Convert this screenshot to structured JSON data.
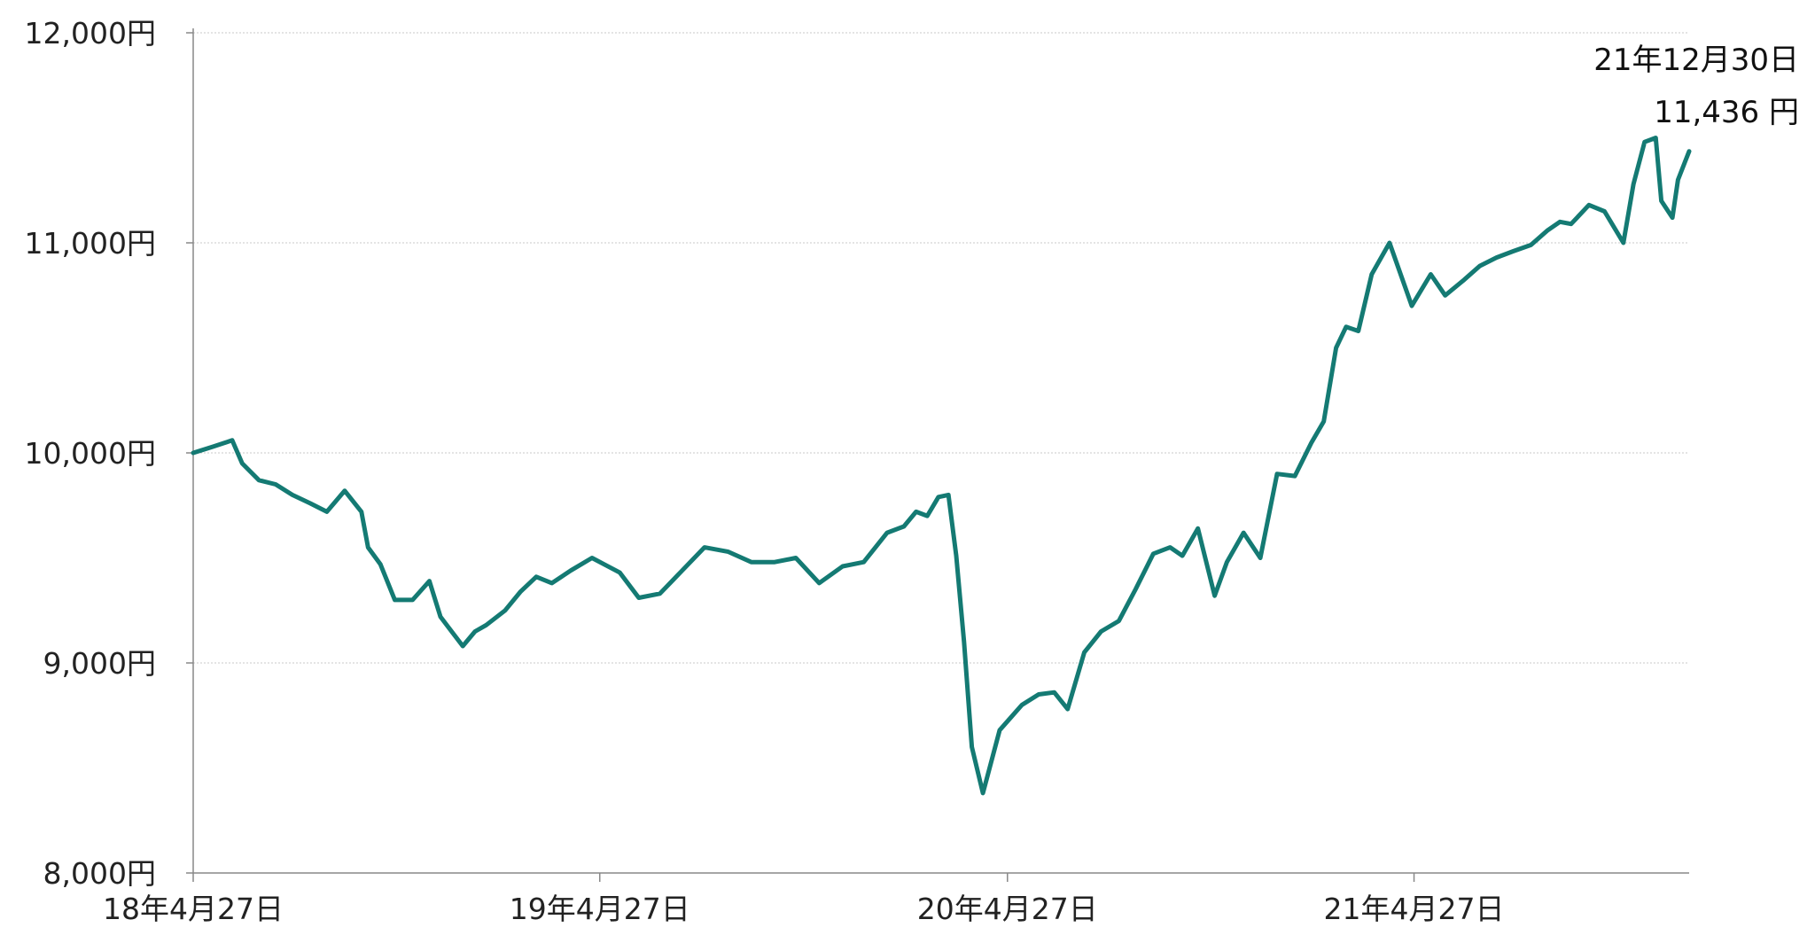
{
  "chart_data": {
    "type": "line",
    "title": "",
    "xlabel": "",
    "ylabel": "",
    "ylim": [
      8000,
      12000
    ],
    "y_ticks": [
      8000,
      9000,
      10000,
      11000,
      12000
    ],
    "y_tick_labels": [
      "8,000円",
      "9,000円",
      "10,000円",
      "11,000円",
      "12,000円"
    ],
    "x_tick_labels": [
      "18年4月27日",
      "19年4月27日",
      "20年4月27日",
      "21年4月27日"
    ],
    "x_ticks": [
      "2018-04-27",
      "2019-04-27",
      "2020-04-27",
      "2021-04-27"
    ],
    "x_range": [
      "2018-04-27",
      "2021-12-30"
    ],
    "grid": true,
    "legend": "none",
    "line_color": "#147a73",
    "annotation": {
      "date_label": "21年12月30日",
      "value_label": "11,436 円"
    },
    "series": [
      {
        "x": [
          "2018-04-27",
          "2018-05-15",
          "2018-06-01",
          "2018-06-10",
          "2018-06-25",
          "2018-07-10",
          "2018-07-25",
          "2018-08-10",
          "2018-08-25",
          "2018-09-10",
          "2018-09-25",
          "2018-10-01",
          "2018-10-12",
          "2018-10-25",
          "2018-11-10",
          "2018-11-25",
          "2018-12-05",
          "2018-12-15",
          "2018-12-25",
          "2019-01-05",
          "2019-01-15",
          "2019-02-01",
          "2019-02-15",
          "2019-03-01",
          "2019-03-15",
          "2019-04-01",
          "2019-04-20",
          "2019-05-15",
          "2019-06-01",
          "2019-06-20",
          "2019-07-10",
          "2019-07-30",
          "2019-08-20",
          "2019-09-10",
          "2019-10-01",
          "2019-10-20",
          "2019-11-10",
          "2019-12-01",
          "2019-12-20",
          "2020-01-10",
          "2020-01-25",
          "2020-02-05",
          "2020-02-15",
          "2020-02-25",
          "2020-03-05",
          "2020-03-12",
          "2020-03-19",
          "2020-03-26",
          "2020-04-05",
          "2020-04-20",
          "2020-05-10",
          "2020-05-25",
          "2020-06-08",
          "2020-06-20",
          "2020-07-05",
          "2020-07-20",
          "2020-08-05",
          "2020-08-20",
          "2020-09-05",
          "2020-09-20",
          "2020-10-01",
          "2020-10-15",
          "2020-10-30",
          "2020-11-10",
          "2020-11-25",
          "2020-12-10",
          "2020-12-25",
          "2021-01-10",
          "2021-01-25",
          "2021-02-05",
          "2021-02-16",
          "2021-02-25",
          "2021-03-08",
          "2021-03-20",
          "2021-04-05",
          "2021-04-25",
          "2021-05-12",
          "2021-05-25",
          "2021-06-10",
          "2021-06-25",
          "2021-07-10",
          "2021-07-25",
          "2021-08-10",
          "2021-08-25",
          "2021-09-05",
          "2021-09-15",
          "2021-10-01",
          "2021-10-15",
          "2021-11-01",
          "2021-11-10",
          "2021-11-20",
          "2021-11-30",
          "2021-12-05",
          "2021-12-15",
          "2021-12-20",
          "2021-12-30"
        ],
        "y": [
          10000,
          10030,
          10060,
          9950,
          9870,
          9850,
          9800,
          9760,
          9720,
          9820,
          9720,
          9550,
          9470,
          9300,
          9300,
          9390,
          9220,
          9150,
          9080,
          9150,
          9180,
          9250,
          9340,
          9410,
          9380,
          9440,
          9500,
          9430,
          9310,
          9330,
          9440,
          9550,
          9530,
          9480,
          9480,
          9500,
          9380,
          9460,
          9480,
          9620,
          9650,
          9720,
          9700,
          9790,
          9800,
          9510,
          9100,
          8600,
          8380,
          8680,
          8800,
          8850,
          8860,
          8780,
          9050,
          9150,
          9200,
          9350,
          9520,
          9550,
          9510,
          9640,
          9320,
          9480,
          9620,
          9500,
          9900,
          9890,
          10050,
          10150,
          10500,
          10600,
          10580,
          10850,
          11000,
          10700,
          10850,
          10750,
          10820,
          10890,
          10930,
          10960,
          10990,
          11060,
          11100,
          11090,
          11180,
          11150,
          11000,
          11280,
          11480,
          11500,
          11200,
          11120,
          11300,
          11436
        ]
      }
    ]
  }
}
